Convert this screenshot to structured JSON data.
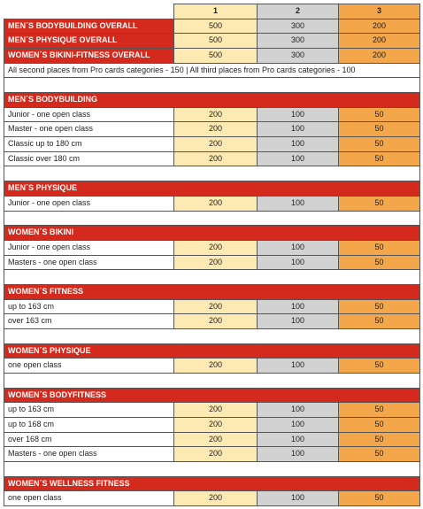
{
  "header": [
    "1",
    "2",
    "3"
  ],
  "overall": [
    {
      "label": "MEN´S BODYBUILDING OVERALL",
      "values": [
        500,
        300,
        200
      ]
    },
    {
      "label": "MEN´S PHYSIQUE OVERALL",
      "values": [
        500,
        300,
        200
      ]
    },
    {
      "label": "WOMEN´S BIKINI-FITNESS OVERALL",
      "values": [
        500,
        300,
        200
      ]
    }
  ],
  "note": "All second places from Pro cards categories - 150  |  All third places from Pro cards categories - 100",
  "sections": [
    {
      "title": "MEN´S BODYBUILDING",
      "rows": [
        {
          "label": "Junior - one open class",
          "values": [
            200,
            100,
            50
          ]
        },
        {
          "label": "Master - one open class",
          "values": [
            200,
            100,
            50
          ]
        },
        {
          "label": "Classic up to 180 cm",
          "values": [
            200,
            100,
            50
          ]
        },
        {
          "label": "Classic over 180 cm",
          "values": [
            200,
            100,
            50
          ]
        }
      ]
    },
    {
      "title": "MEN´S PHYSIQUE",
      "rows": [
        {
          "label": "Junior - one open class",
          "values": [
            200,
            100,
            50
          ]
        }
      ]
    },
    {
      "title": "WOMEN´S BIKINI",
      "rows": [
        {
          "label": "Junior - one open class",
          "values": [
            200,
            100,
            50
          ]
        },
        {
          "label": "Masters - one open class",
          "values": [
            200,
            100,
            50
          ]
        }
      ]
    },
    {
      "title": "WOMEN´S FITNESS",
      "rows": [
        {
          "label": "up to 163 cm",
          "values": [
            200,
            100,
            50
          ]
        },
        {
          "label": "over 163 cm",
          "values": [
            200,
            100,
            50
          ]
        }
      ]
    },
    {
      "title": "WOMEN´S PHYSIQUE",
      "rows": [
        {
          "label": "one open class",
          "values": [
            200,
            100,
            50
          ]
        }
      ]
    },
    {
      "title": "WOMEN´S BODYFITNESS",
      "rows": [
        {
          "label": "up to 163 cm",
          "values": [
            200,
            100,
            50
          ]
        },
        {
          "label": "up to 168 cm",
          "values": [
            200,
            100,
            50
          ]
        },
        {
          "label": "over 168 cm",
          "values": [
            200,
            100,
            50
          ]
        },
        {
          "label": "Masters - one open class",
          "values": [
            200,
            100,
            50
          ]
        }
      ]
    },
    {
      "title": "WOMEN´S WELLNESS FITNESS",
      "rows": [
        {
          "label": "one open class",
          "values": [
            200,
            100,
            50
          ]
        }
      ]
    }
  ]
}
